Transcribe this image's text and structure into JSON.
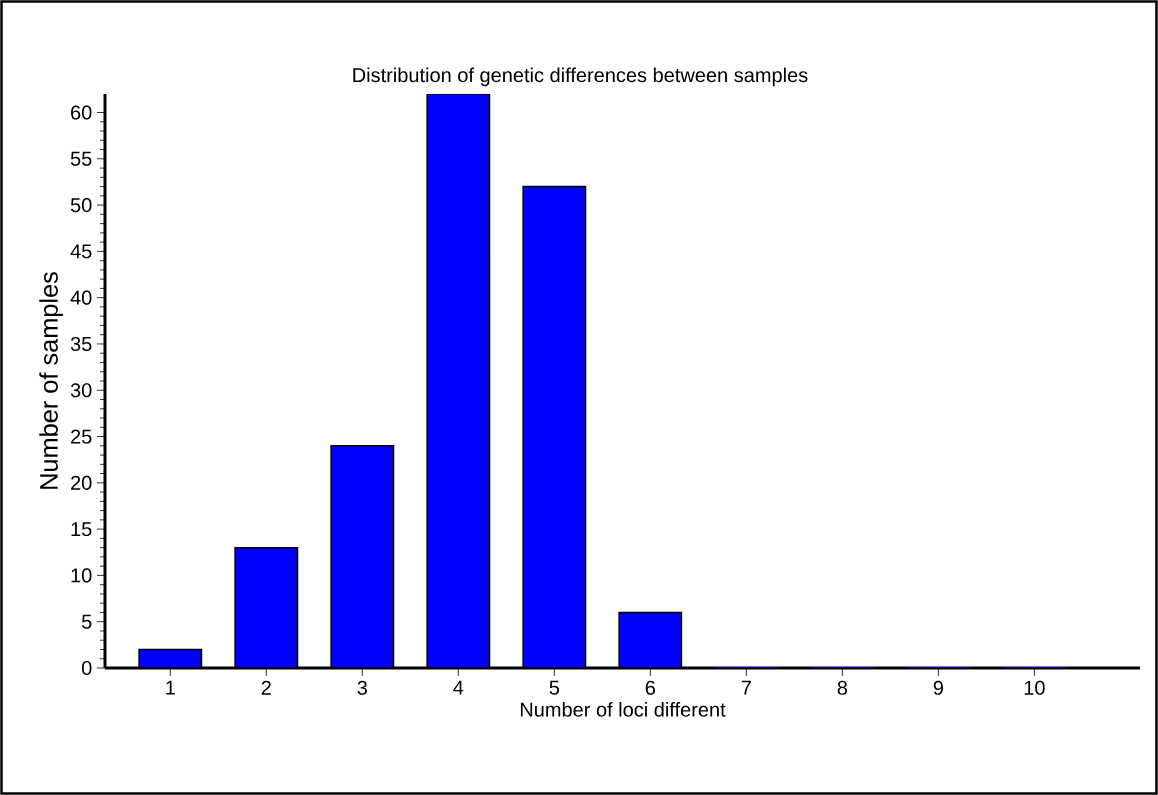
{
  "chart_data": {
    "type": "bar",
    "title": "Distribution of genetic differences between samples",
    "xlabel": "Number of loci different",
    "ylabel": "Number of samples",
    "categories": [
      "1",
      "2",
      "3",
      "4",
      "5",
      "6",
      "7",
      "8",
      "9",
      "10"
    ],
    "values": [
      2,
      13,
      24,
      62,
      52,
      6,
      0,
      0,
      0,
      0
    ],
    "color": "#0000ff",
    "ylim": [
      0,
      62
    ],
    "yticks": [
      0,
      5,
      10,
      15,
      20,
      25,
      30,
      35,
      40,
      45,
      50,
      55,
      60
    ]
  }
}
